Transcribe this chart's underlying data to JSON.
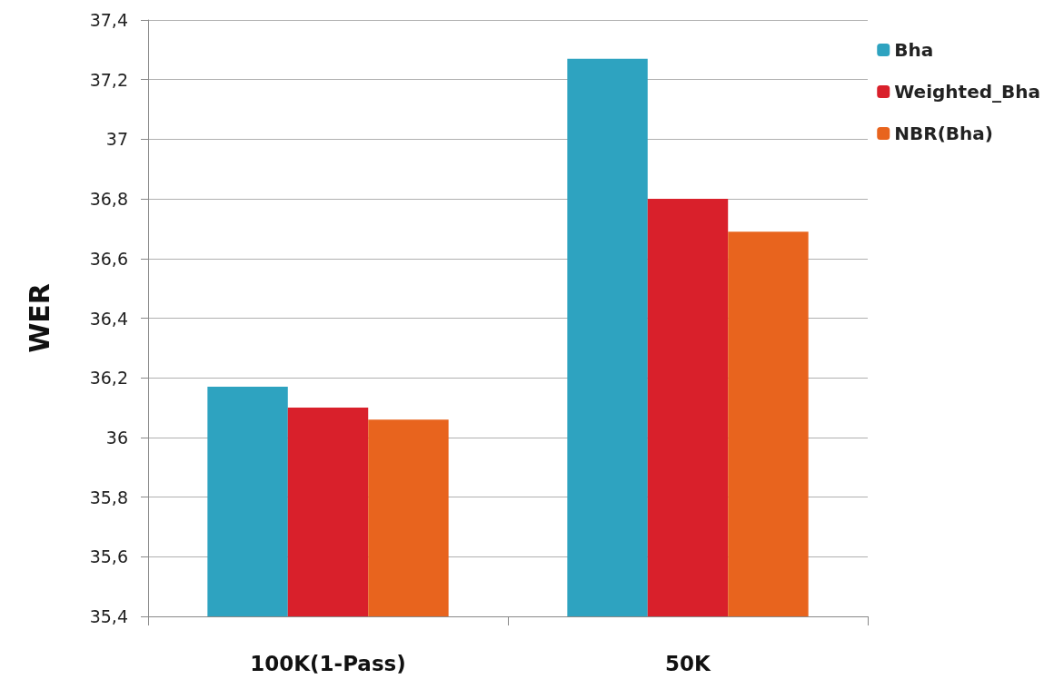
{
  "chart_data": {
    "type": "bar",
    "ylabel": "WER",
    "categories": [
      "100K(1-Pass)",
      "50K"
    ],
    "series": [
      {
        "name": "Bha",
        "color": "#2ea3c0",
        "values": [
          36.17,
          37.27
        ]
      },
      {
        "name": "Weighted_Bha",
        "color": "#d9202b",
        "values": [
          36.1,
          36.8
        ]
      },
      {
        "name": "NBR(Bha)",
        "color": "#e8641e",
        "values": [
          36.06,
          36.69
        ]
      }
    ],
    "ylim": [
      35.4,
      37.4
    ],
    "yticks": [
      {
        "value": 35.4,
        "label": "35,4"
      },
      {
        "value": 35.6,
        "label": "35,6"
      },
      {
        "value": 35.8,
        "label": "35,8"
      },
      {
        "value": 36,
        "label": "36"
      },
      {
        "value": 36.2,
        "label": "36,2"
      },
      {
        "value": 36.4,
        "label": "36,4"
      },
      {
        "value": 36.6,
        "label": "36,6"
      },
      {
        "value": 36.8,
        "label": "36,8"
      },
      {
        "value": 37,
        "label": "37"
      },
      {
        "value": 37.2,
        "label": "37,2"
      },
      {
        "value": 37.4,
        "label": "37,4"
      }
    ],
    "grid": "y",
    "legend": "top right"
  }
}
